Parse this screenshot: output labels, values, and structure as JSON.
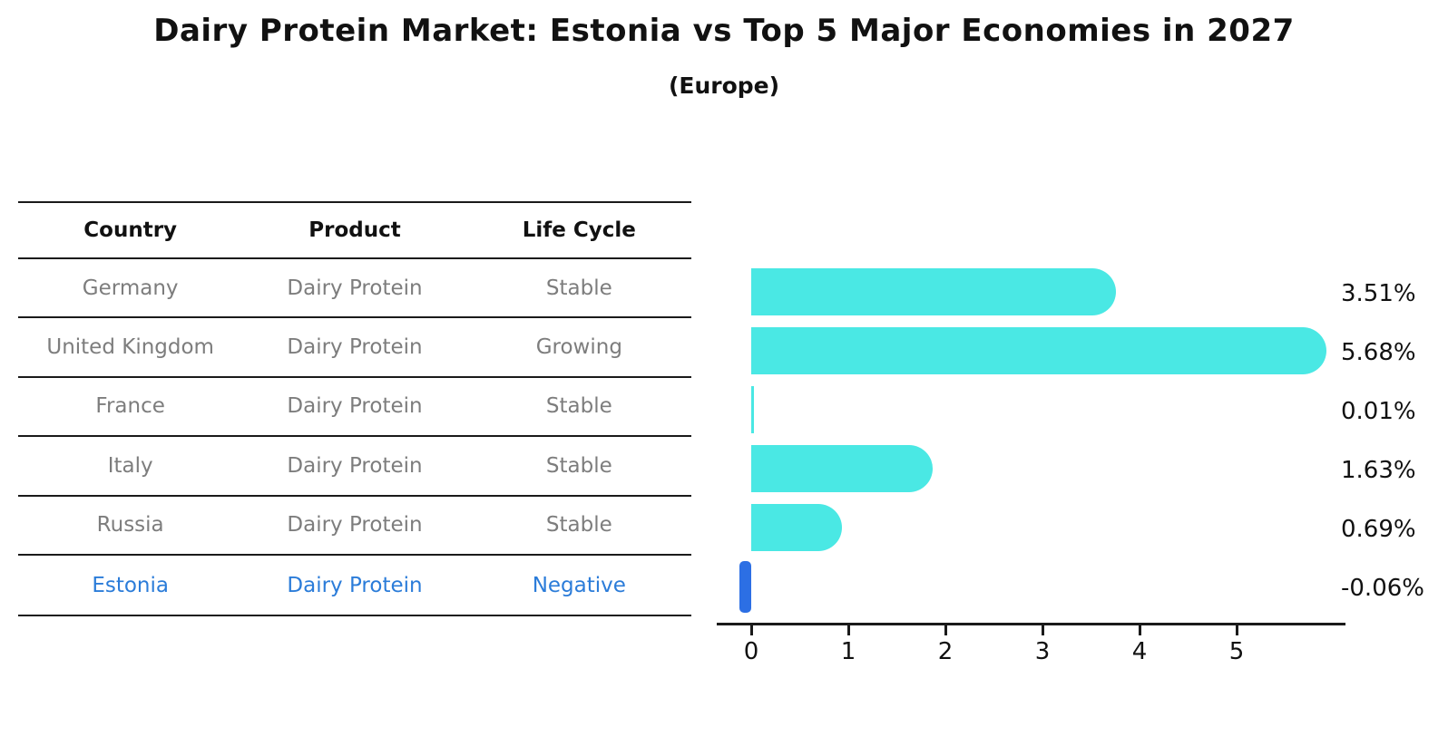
{
  "title": "Dairy Protein Market: Estonia vs Top 5 Major Economies in 2027",
  "subtitle": "(Europe)",
  "table": {
    "headers": [
      "Country",
      "Product",
      "Life Cycle"
    ],
    "rows": [
      {
        "country": "Germany",
        "product": "Dairy Protein",
        "life_cycle": "Stable",
        "highlighted": false
      },
      {
        "country": "United Kingdom",
        "product": "Dairy Protein",
        "life_cycle": "Growing",
        "highlighted": false
      },
      {
        "country": "France",
        "product": "Dairy Protein",
        "life_cycle": "Stable",
        "highlighted": false
      },
      {
        "country": "Italy",
        "product": "Dairy Protein",
        "life_cycle": "Stable",
        "highlighted": false
      },
      {
        "country": "Russia",
        "product": "Dairy Protein",
        "life_cycle": "Stable",
        "highlighted": false
      },
      {
        "country": "Estonia",
        "product": "Dairy Protein",
        "life_cycle": "Negative",
        "highlighted": true
      }
    ]
  },
  "chart_data": {
    "type": "bar",
    "orientation": "horizontal",
    "title": "Dairy Protein Market: Estonia vs Top 5 Major Economies in 2027",
    "subtitle": "(Europe)",
    "categories": [
      "Germany",
      "United Kingdom",
      "France",
      "Italy",
      "Russia",
      "Estonia"
    ],
    "values": [
      3.51,
      5.68,
      0.01,
      1.63,
      0.69,
      -0.06
    ],
    "value_labels": [
      "3.51%",
      "5.68%",
      "0.01%",
      "1.63%",
      "0.69%",
      "-0.06%"
    ],
    "unit": "percent",
    "x_ticks": [
      0,
      1,
      2,
      3,
      4,
      5
    ],
    "xlim": [
      -0.1,
      6.1
    ],
    "grid": false,
    "legend": false,
    "bar_color": "#4ae8e4",
    "highlight_color": "#2c6fe4",
    "highlight_index": 5
  },
  "colors": {
    "bar_cyan": "#4ae8e4",
    "estonia_blue": "#2b7cd9",
    "axis_black": "#1a1a1a",
    "row_gray": "#7d7d7d"
  }
}
